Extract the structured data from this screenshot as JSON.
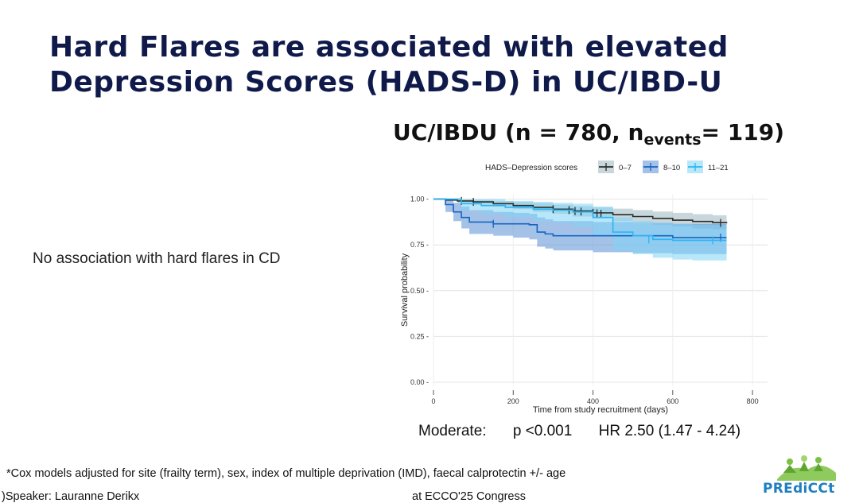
{
  "slide": {
    "title_line1": "Hard Flares are associated with elevated",
    "title_line2": "Depression Scores (HADS-D) in UC/IBD-U",
    "cohort_prefix": "UC/IBDU (n = 780, n",
    "cohort_sub": "events",
    "cohort_suffix": "= 119)",
    "side_note": "No association with hard flares in CD",
    "stat_label": "Moderate:",
    "stat_p": "p <0.001",
    "stat_hr": "HR 2.50 (1.47 - 4.24)",
    "footnote": "*Cox models adjusted for site (frailty term), sex, index of multiple deprivation (IMD), faecal calprotectin +/- age",
    "speaker": ")Speaker:  Lauranne Derikx",
    "congress": "at ECCO'25 Congress",
    "logo_text": "PREdiCCt",
    "logo_colors": {
      "green": "#7bc142",
      "blue": "#1f7fc1"
    }
  },
  "chart_data": {
    "type": "line",
    "subtype": "kaplan-meier",
    "legend_title": "HADS–Depression scores",
    "legend_position": "top",
    "xlabel": "Time from study recruitment (days)",
    "ylabel": "Survival probability",
    "xlim": [
      0,
      800
    ],
    "ylim": [
      0,
      1
    ],
    "x_ticks": [
      0,
      200,
      400,
      600,
      800
    ],
    "x_tick_labels": [
      "0",
      "200",
      "400",
      "600",
      "800"
    ],
    "y_ticks": [
      0,
      0.25,
      0.5,
      0.75,
      1
    ],
    "y_tick_labels": [
      "0.00",
      "0.25",
      "0.50",
      "0.75",
      "1.00"
    ],
    "grid": true,
    "series": [
      {
        "name": "0–7",
        "color": "#2b2b2b",
        "band_color": "#9bb7bf",
        "x": [
          0,
          30,
          60,
          100,
          150,
          200,
          250,
          300,
          350,
          400,
          450,
          500,
          550,
          600,
          650,
          700,
          735
        ],
        "y": [
          1.0,
          0.995,
          0.99,
          0.985,
          0.975,
          0.965,
          0.955,
          0.945,
          0.935,
          0.925,
          0.915,
          0.905,
          0.895,
          0.885,
          0.878,
          0.872,
          0.868
        ],
        "ci_low": [
          1.0,
          0.99,
          0.98,
          0.97,
          0.96,
          0.945,
          0.93,
          0.92,
          0.905,
          0.895,
          0.88,
          0.87,
          0.86,
          0.85,
          0.84,
          0.835,
          0.83
        ],
        "ci_high": [
          1.0,
          1.0,
          1.0,
          0.995,
          0.99,
          0.985,
          0.978,
          0.97,
          0.962,
          0.955,
          0.948,
          0.94,
          0.932,
          0.925,
          0.918,
          0.912,
          0.908
        ],
        "censor_x": [
          70,
          100,
          300,
          340,
          355,
          370,
          400,
          410,
          420,
          720
        ],
        "censor_y": [
          0.99,
          0.985,
          0.945,
          0.94,
          0.935,
          0.932,
          0.925,
          0.922,
          0.92,
          0.87
        ]
      },
      {
        "name": "8–10",
        "color": "#1565c0",
        "band_color": "#5a8fd6",
        "x": [
          0,
          30,
          50,
          70,
          90,
          150,
          200,
          240,
          260,
          280,
          300,
          400,
          500,
          600,
          735
        ],
        "y": [
          1.0,
          0.97,
          0.93,
          0.9,
          0.875,
          0.865,
          0.865,
          0.86,
          0.82,
          0.81,
          0.8,
          0.8,
          0.8,
          0.79,
          0.79
        ],
        "ci_low": [
          1.0,
          0.93,
          0.88,
          0.84,
          0.81,
          0.8,
          0.79,
          0.78,
          0.74,
          0.73,
          0.72,
          0.71,
          0.705,
          0.7,
          0.69
        ],
        "ci_high": [
          1.0,
          1.0,
          0.98,
          0.96,
          0.94,
          0.93,
          0.925,
          0.92,
          0.9,
          0.89,
          0.88,
          0.875,
          0.87,
          0.865,
          0.86
        ],
        "censor_x": [
          150,
          720
        ],
        "censor_y": [
          0.865,
          0.79
        ]
      },
      {
        "name": "11–21",
        "color": "#29b6f6",
        "band_color": "#7fd3f5",
        "x": [
          0,
          70,
          120,
          180,
          250,
          300,
          350,
          400,
          450,
          500,
          550,
          600,
          650,
          735
        ],
        "y": [
          1.0,
          0.975,
          0.965,
          0.955,
          0.945,
          0.94,
          0.93,
          0.9,
          0.82,
          0.8,
          0.78,
          0.775,
          0.775,
          0.775
        ],
        "ci_low": [
          1.0,
          0.94,
          0.92,
          0.9,
          0.88,
          0.87,
          0.85,
          0.8,
          0.72,
          0.7,
          0.68,
          0.67,
          0.665,
          0.66
        ],
        "ci_high": [
          1.0,
          1.0,
          1.0,
          0.99,
          0.985,
          0.98,
          0.975,
          0.96,
          0.9,
          0.88,
          0.87,
          0.865,
          0.86,
          0.86
        ],
        "censor_x": [
          540,
          700
        ],
        "censor_y": [
          0.78,
          0.775
        ]
      }
    ]
  }
}
